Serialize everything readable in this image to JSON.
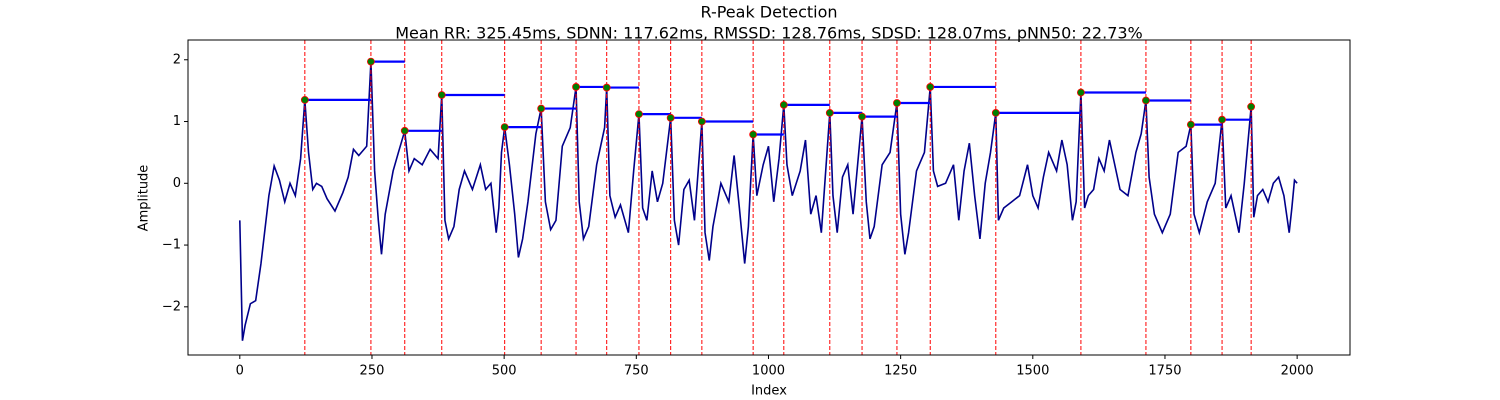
{
  "chart_data": {
    "type": "line",
    "title": "R-Peak Detection",
    "subtitle": "Mean RR: 325.45ms, SDNN: 117.62ms, RMSSD: 128.76ms, SDSD: 128.07ms, pNN50: 22.73%",
    "x_label": "Index",
    "y_label": "Amplitude",
    "color": "#00008b",
    "xlim": [
      -98,
      2100
    ],
    "ylim": [
      -2.78,
      2.32
    ],
    "xticks": [
      0,
      250,
      500,
      750,
      1000,
      1250,
      1500,
      1750,
      2000
    ],
    "yticks": [
      {
        "value": -2,
        "label": "−2"
      },
      {
        "value": -1,
        "label": "−1"
      },
      0,
      1,
      2
    ],
    "x": [
      0,
      5,
      10,
      20,
      30,
      40,
      55,
      65,
      75,
      85,
      95,
      105,
      115,
      123,
      130,
      138,
      145,
      155,
      165,
      180,
      195,
      205,
      215,
      225,
      240,
      248,
      255,
      262,
      268,
      275,
      290,
      300,
      312,
      320,
      330,
      345,
      360,
      375,
      382,
      388,
      395,
      405,
      415,
      425,
      440,
      455,
      465,
      475,
      485,
      490,
      495,
      501,
      510,
      520,
      527,
      535,
      545,
      560,
      570,
      578,
      588,
      598,
      610,
      625,
      636,
      642,
      650,
      660,
      675,
      690,
      694,
      700,
      710,
      720,
      735,
      745,
      755,
      762,
      770,
      780,
      790,
      800,
      815,
      822,
      830,
      840,
      850,
      860,
      874,
      880,
      888,
      895,
      910,
      925,
      935,
      945,
      955,
      962,
      971,
      978,
      990,
      1000,
      1010,
      1020,
      1029,
      1035,
      1045,
      1060,
      1070,
      1080,
      1090,
      1100,
      1116,
      1122,
      1130,
      1140,
      1150,
      1160,
      1177,
      1185,
      1192,
      1200,
      1215,
      1230,
      1243,
      1250,
      1258,
      1265,
      1280,
      1295,
      1306,
      1312,
      1320,
      1335,
      1350,
      1360,
      1370,
      1380,
      1390,
      1400,
      1410,
      1420,
      1430,
      1435,
      1445,
      1460,
      1475,
      1490,
      1500,
      1510,
      1520,
      1530,
      1545,
      1555,
      1565,
      1575,
      1582,
      1591,
      1598,
      1605,
      1615,
      1625,
      1635,
      1645,
      1655,
      1665,
      1680,
      1695,
      1705,
      1714,
      1720,
      1730,
      1745,
      1760,
      1775,
      1790,
      1799,
      1805,
      1815,
      1830,
      1845,
      1858,
      1865,
      1875,
      1890,
      1900,
      1913,
      1918,
      1925,
      1935,
      1945,
      1955,
      1965,
      1975,
      1985,
      1990,
      1995,
      2000
    ],
    "values": [
      -0.6,
      -2.55,
      -2.3,
      -1.95,
      -1.9,
      -1.3,
      -0.2,
      0.28,
      0.05,
      -0.3,
      0.0,
      -0.2,
      0.4,
      1.35,
      0.5,
      -0.1,
      0.0,
      -0.05,
      -0.25,
      -0.45,
      -0.15,
      0.1,
      0.55,
      0.45,
      0.6,
      1.97,
      0.2,
      -0.6,
      -1.15,
      -0.5,
      0.2,
      0.5,
      0.85,
      0.2,
      0.4,
      0.3,
      0.55,
      0.4,
      1.43,
      -0.6,
      -0.9,
      -0.7,
      -0.1,
      0.2,
      -0.1,
      0.3,
      -0.1,
      0.0,
      -0.8,
      -0.4,
      0.5,
      0.91,
      0.3,
      -0.5,
      -1.2,
      -0.9,
      -0.3,
      0.8,
      1.21,
      -0.3,
      -0.75,
      -0.6,
      0.6,
      0.9,
      1.56,
      -0.3,
      -0.9,
      -0.7,
      0.3,
      0.9,
      1.55,
      -0.2,
      -0.55,
      -0.35,
      -0.8,
      0.2,
      1.12,
      -0.4,
      -0.6,
      0.2,
      -0.3,
      0.0,
      1.06,
      -0.6,
      -1.0,
      -0.1,
      0.05,
      -0.6,
      1.0,
      -0.8,
      -1.25,
      -0.7,
      0.0,
      -0.3,
      0.45,
      -0.4,
      -1.3,
      -0.7,
      0.79,
      -0.2,
      0.3,
      0.6,
      -0.3,
      0.4,
      1.27,
      0.3,
      -0.2,
      0.2,
      0.7,
      -0.5,
      -0.2,
      -0.8,
      1.14,
      -0.2,
      -0.8,
      0.1,
      0.3,
      -0.5,
      1.08,
      -0.3,
      -0.9,
      -0.7,
      0.3,
      0.5,
      1.3,
      -0.5,
      -1.15,
      -0.8,
      0.2,
      0.5,
      1.56,
      0.2,
      -0.05,
      0.0,
      0.3,
      -0.6,
      0.2,
      0.65,
      -0.2,
      -0.9,
      0.0,
      0.5,
      1.14,
      -0.6,
      -0.4,
      -0.3,
      -0.2,
      0.3,
      -0.2,
      -0.4,
      0.1,
      0.5,
      0.2,
      0.7,
      0.3,
      -0.6,
      -0.3,
      1.47,
      -0.4,
      -0.2,
      -0.1,
      0.4,
      0.2,
      0.7,
      0.3,
      -0.1,
      -0.2,
      0.5,
      0.8,
      1.34,
      0.1,
      -0.5,
      -0.8,
      -0.5,
      0.5,
      0.6,
      0.95,
      -0.5,
      -0.8,
      -0.3,
      0.0,
      1.03,
      -0.4,
      -0.2,
      -0.8,
      0.0,
      1.24,
      -0.55,
      -0.2,
      -0.1,
      -0.3,
      0.0,
      0.1,
      -0.2,
      -0.8,
      -0.4,
      0.05,
      0.0
    ],
    "peaks": {
      "color": "#008000",
      "edge_color": "#ff0000",
      "line_color": "#ff0000",
      "rr_color": "#0000ff",
      "x": [
        123,
        248,
        312,
        382,
        501,
        570,
        636,
        694,
        755,
        815,
        874,
        971,
        1029,
        1116,
        1177,
        1243,
        1306,
        1430,
        1591,
        1714,
        1799,
        1858,
        1913
      ],
      "values": [
        1.35,
        1.97,
        0.85,
        1.43,
        0.91,
        1.21,
        1.56,
        1.55,
        1.12,
        1.06,
        1.0,
        0.79,
        1.27,
        1.14,
        1.08,
        1.3,
        1.56,
        1.14,
        1.47,
        1.34,
        0.95,
        1.03,
        1.24
      ]
    }
  }
}
